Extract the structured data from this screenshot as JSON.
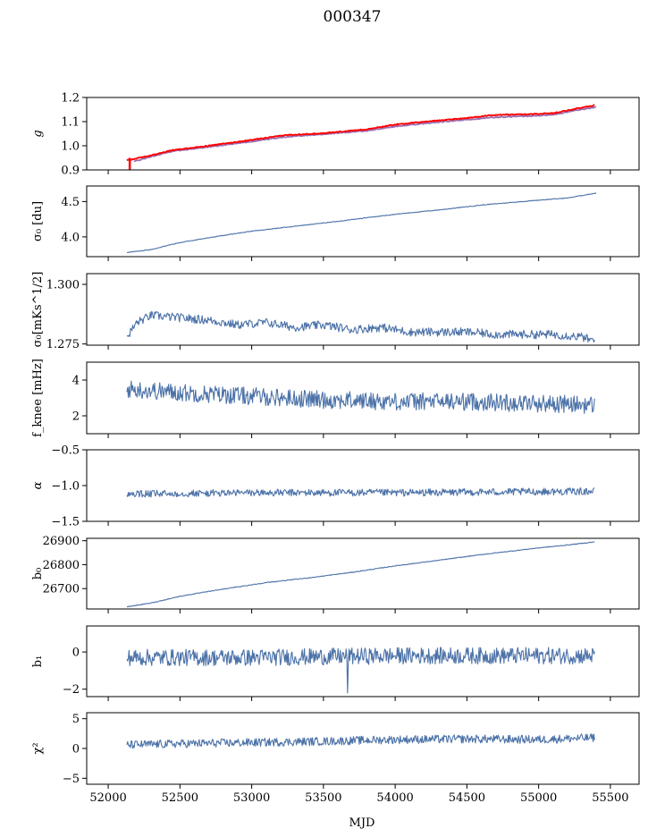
{
  "figure": {
    "title": "000347",
    "xlabel": "MJD"
  },
  "colors": {
    "series_blue": "#4c72a8",
    "fit_red": "#ff0000",
    "fit_purple": "#9a6fb0"
  },
  "chart_data": [
    {
      "type": "line",
      "ylabel": "g",
      "xlim": [
        51850,
        55700
      ],
      "ylim": [
        0.9,
        1.2
      ],
      "y_ticks": [
        0.9,
        1.0,
        1.1,
        1.2
      ],
      "y_tick_labels": [
        "0.9",
        "1.0",
        "1.1",
        "1.2"
      ],
      "series": [
        {
          "color": "#9a6fb0",
          "anchors": [
            [
              52180,
              0.935
            ],
            [
              52300,
              0.955
            ],
            [
              52450,
              0.978
            ],
            [
              52700,
              0.995
            ],
            [
              53000,
              1.018
            ],
            [
              53250,
              1.038
            ],
            [
              53500,
              1.048
            ],
            [
              53800,
              1.062
            ],
            [
              54000,
              1.08
            ],
            [
              54250,
              1.095
            ],
            [
              54500,
              1.108
            ],
            [
              54700,
              1.118
            ],
            [
              54900,
              1.122
            ],
            [
              55100,
              1.128
            ],
            [
              55250,
              1.146
            ],
            [
              55400,
              1.16
            ]
          ]
        },
        {
          "color": "#ff0000",
          "anchors": [
            [
              52130,
              0.94
            ],
            [
              52300,
              0.96
            ],
            [
              52450,
              0.982
            ],
            [
              52700,
              1.0
            ],
            [
              53000,
              1.024
            ],
            [
              53250,
              1.045
            ],
            [
              53500,
              1.052
            ],
            [
              53800,
              1.068
            ],
            [
              54000,
              1.088
            ],
            [
              54250,
              1.102
            ],
            [
              54500,
              1.115
            ],
            [
              54700,
              1.128
            ],
            [
              54900,
              1.13
            ],
            [
              55100,
              1.135
            ],
            [
              55250,
              1.152
            ],
            [
              55390,
              1.168
            ]
          ]
        }
      ],
      "noise": 0.002,
      "spike": {
        "x": 52150,
        "values": [
          0.9,
          0.95
        ]
      }
    },
    {
      "type": "line",
      "ylabel": "σ₀ [du]",
      "xlim": [
        51850,
        55700
      ],
      "ylim": [
        3.72,
        4.72
      ],
      "y_ticks": [
        4.0,
        4.5
      ],
      "y_tick_labels": [
        "4.0",
        "4.5"
      ],
      "series": [
        {
          "color": "#4c72a8",
          "anchors": [
            [
              52130,
              3.78
            ],
            [
              52300,
              3.82
            ],
            [
              52500,
              3.92
            ],
            [
              52800,
              4.02
            ],
            [
              53000,
              4.08
            ],
            [
              53300,
              4.15
            ],
            [
              53600,
              4.22
            ],
            [
              54000,
              4.32
            ],
            [
              54300,
              4.38
            ],
            [
              54600,
              4.45
            ],
            [
              55000,
              4.52
            ],
            [
              55200,
              4.55
            ],
            [
              55400,
              4.62
            ]
          ]
        }
      ],
      "noise": 0.005
    },
    {
      "type": "line",
      "ylabel": "σ₀[mKs^1/2]",
      "xlim": [
        51850,
        55700
      ],
      "ylim": [
        1.2745,
        1.3045
      ],
      "y_ticks": [
        1.275,
        1.3
      ],
      "y_tick_labels": [
        "1.275",
        "1.300"
      ],
      "series": [
        {
          "color": "#4c72a8",
          "anchors": [
            [
              52130,
              1.278
            ],
            [
              52200,
              1.284
            ],
            [
              52300,
              1.287
            ],
            [
              52500,
              1.286
            ],
            [
              52700,
              1.285
            ],
            [
              52900,
              1.283
            ],
            [
              53100,
              1.284
            ],
            [
              53300,
              1.282
            ],
            [
              53500,
              1.283
            ],
            [
              53700,
              1.281
            ],
            [
              53900,
              1.282
            ],
            [
              54100,
              1.28
            ],
            [
              54300,
              1.28
            ],
            [
              54500,
              1.28
            ],
            [
              54700,
              1.279
            ],
            [
              54900,
              1.279
            ],
            [
              55100,
              1.279
            ],
            [
              55300,
              1.278
            ],
            [
              55390,
              1.276
            ]
          ]
        }
      ],
      "noise": 0.0018
    },
    {
      "type": "line",
      "ylabel": "f_knee [mHz]",
      "xlim": [
        51850,
        55700
      ],
      "ylim": [
        1.0,
        5.0
      ],
      "y_ticks": [
        2,
        4
      ],
      "y_tick_labels": [
        "2",
        "4"
      ],
      "series": [
        {
          "color": "#4c72a8",
          "anchors": [
            [
              52130,
              3.5
            ],
            [
              52500,
              3.3
            ],
            [
              53000,
              3.1
            ],
            [
              53500,
              2.9
            ],
            [
              54000,
              2.8
            ],
            [
              54500,
              2.8
            ],
            [
              55000,
              2.7
            ],
            [
              55390,
              2.6
            ]
          ]
        }
      ],
      "noise": 0.5
    },
    {
      "type": "line",
      "ylabel": "α",
      "xlim": [
        51850,
        55700
      ],
      "ylim": [
        -1.5,
        -0.5
      ],
      "y_ticks": [
        -1.5,
        -1.0,
        -0.5
      ],
      "y_tick_labels": [
        "−1.5",
        "−1.0",
        "−0.5"
      ],
      "series": [
        {
          "color": "#4c72a8",
          "anchors": [
            [
              52130,
              -1.12
            ],
            [
              53000,
              -1.1
            ],
            [
              54000,
              -1.1
            ],
            [
              55390,
              -1.08
            ]
          ]
        }
      ],
      "noise": 0.05
    },
    {
      "type": "line",
      "ylabel": "b₀",
      "xlim": [
        51850,
        55700
      ],
      "ylim": [
        26615,
        26910
      ],
      "y_ticks": [
        26700,
        26800,
        26900
      ],
      "y_tick_labels": [
        "26700",
        "26800",
        "26900"
      ],
      "series": [
        {
          "color": "#4c72a8",
          "anchors": [
            [
              52130,
              26624
            ],
            [
              52300,
              26640
            ],
            [
              52500,
              26668
            ],
            [
              52800,
              26698
            ],
            [
              53100,
              26725
            ],
            [
              53400,
              26745
            ],
            [
              53700,
              26768
            ],
            [
              54000,
              26795
            ],
            [
              54300,
              26818
            ],
            [
              54600,
              26842
            ],
            [
              55000,
              26870
            ],
            [
              55200,
              26882
            ],
            [
              55390,
              26895
            ]
          ]
        }
      ],
      "noise": 1.5
    },
    {
      "type": "line",
      "ylabel": "b₁",
      "xlim": [
        51850,
        55700
      ],
      "ylim": [
        -2.4,
        1.4
      ],
      "y_ticks": [
        -2,
        0
      ],
      "y_tick_labels": [
        "−2",
        "0"
      ],
      "series": [
        {
          "color": "#4c72a8",
          "anchors": [
            [
              52130,
              -0.3
            ],
            [
              53000,
              -0.3
            ],
            [
              54000,
              -0.2
            ],
            [
              55390,
              -0.2
            ]
          ]
        }
      ],
      "noise": 0.45,
      "dip": {
        "x": 53670,
        "y": -2.2
      }
    },
    {
      "type": "line",
      "ylabel": "χ²",
      "xlim": [
        51850,
        55700
      ],
      "ylim": [
        -6,
        6
      ],
      "y_ticks": [
        -5,
        0,
        5
      ],
      "y_tick_labels": [
        "−5",
        "0",
        "5"
      ],
      "x_ticks": [
        52000,
        52500,
        53000,
        53500,
        54000,
        54500,
        55000,
        55500
      ],
      "x_tick_labels": [
        "52000",
        "52500",
        "53000",
        "53500",
        "54000",
        "54500",
        "55000",
        "55500"
      ],
      "series": [
        {
          "color": "#4c72a8",
          "anchors": [
            [
              52130,
              0.6
            ],
            [
              52500,
              0.8
            ],
            [
              53000,
              1.0
            ],
            [
              53500,
              1.2
            ],
            [
              54000,
              1.5
            ],
            [
              54500,
              1.6
            ],
            [
              55000,
              1.5
            ],
            [
              55390,
              1.8
            ]
          ]
        }
      ],
      "noise": 0.7
    }
  ]
}
